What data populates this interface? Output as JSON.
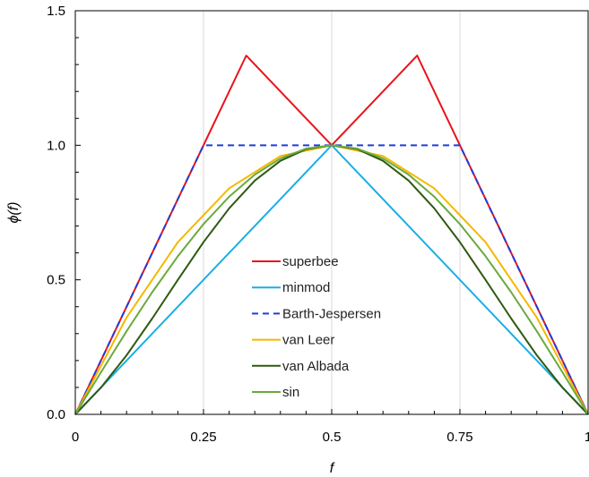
{
  "chart_data": {
    "type": "line",
    "title": "",
    "xlabel": "f",
    "ylabel": "ϕ(f)",
    "xlim": [
      0,
      1
    ],
    "ylim": [
      0,
      1.5
    ],
    "x_ticks": [
      0,
      0.25,
      0.5,
      0.75,
      1
    ],
    "x_tick_labels": [
      "0",
      "0.25",
      "0.5",
      "0.75",
      "1"
    ],
    "y_ticks": [
      0,
      0.5,
      1.0,
      1.5
    ],
    "y_tick_labels": [
      "0.0",
      "0.5",
      "1.0",
      "1.5"
    ],
    "grid_x": true,
    "grid_y": false,
    "legend": "center",
    "series": [
      {
        "name": "superbee",
        "color": "#e8131b",
        "dash": "solid",
        "x": [
          0,
          0.25,
          0.3333,
          0.5,
          0.6667,
          0.75,
          1
        ],
        "y": [
          0,
          1.0,
          1.3333,
          1.0,
          1.3333,
          1.0,
          0
        ]
      },
      {
        "name": "minmod",
        "color": "#1aaee6",
        "dash": "solid",
        "x": [
          0,
          0.5,
          1
        ],
        "y": [
          0,
          1.0,
          0
        ]
      },
      {
        "name": "Barth-Jespersen",
        "color": "#1f3ddb",
        "dash": "dashed",
        "x": [
          0,
          0.25,
          0.75,
          1
        ],
        "y": [
          0,
          1.0,
          1.0,
          0
        ]
      },
      {
        "name": "van Leer",
        "color": "#f5b800",
        "dash": "solid",
        "x": [
          0,
          0.1,
          0.2,
          0.3,
          0.4,
          0.5,
          0.6,
          0.7,
          0.8,
          0.9,
          1
        ],
        "y": [
          0,
          0.36,
          0.64,
          0.84,
          0.96,
          1.0,
          0.96,
          0.84,
          0.64,
          0.36,
          0
        ]
      },
      {
        "name": "van Albada",
        "color": "#2e5a12",
        "dash": "solid",
        "x": [
          0,
          0.05,
          0.1,
          0.15,
          0.2,
          0.25,
          0.3,
          0.35,
          0.4,
          0.45,
          0.5,
          0.55,
          0.6,
          0.65,
          0.7,
          0.75,
          0.8,
          0.85,
          0.9,
          0.95,
          1
        ],
        "y": [
          0,
          0.0994,
          0.2195,
          0.3563,
          0.5,
          0.64,
          0.7656,
          0.8687,
          0.9423,
          0.9855,
          1.0,
          0.9855,
          0.9423,
          0.8687,
          0.7656,
          0.64,
          0.5,
          0.3563,
          0.2195,
          0.0994,
          0
        ]
      },
      {
        "name": "sin",
        "color": "#6aaa3e",
        "dash": "solid",
        "x": [
          0,
          0.05,
          0.1,
          0.15,
          0.2,
          0.25,
          0.3,
          0.35,
          0.4,
          0.45,
          0.5,
          0.55,
          0.6,
          0.65,
          0.7,
          0.75,
          0.8,
          0.85,
          0.9,
          0.95,
          1
        ],
        "y": [
          0,
          0.1564,
          0.309,
          0.454,
          0.5878,
          0.7071,
          0.809,
          0.891,
          0.9511,
          0.9877,
          1.0,
          0.9877,
          0.9511,
          0.891,
          0.809,
          0.7071,
          0.5878,
          0.454,
          0.309,
          0.1564,
          0
        ]
      }
    ]
  }
}
